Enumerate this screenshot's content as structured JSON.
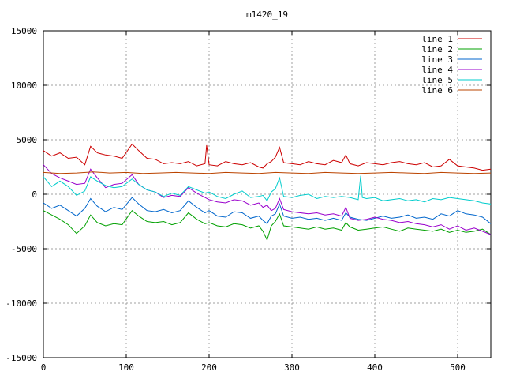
{
  "chart_data": {
    "type": "line",
    "title": "m1420_19",
    "xlabel": "",
    "ylabel": "",
    "xlim": [
      0,
      540
    ],
    "ylim": [
      -15000,
      15000
    ],
    "xticks": [
      0,
      100,
      200,
      300,
      400,
      500
    ],
    "yticks": [
      -15000,
      -10000,
      -5000,
      0,
      5000,
      10000,
      15000
    ],
    "grid": true,
    "legend_position": "top-right",
    "series": [
      {
        "name": "line 1",
        "color": "#cc0000",
        "x": [
          0,
          10,
          20,
          30,
          40,
          50,
          57,
          65,
          75,
          85,
          95,
          107,
          115,
          125,
          135,
          145,
          155,
          165,
          175,
          185,
          195,
          197,
          200,
          210,
          220,
          230,
          240,
          250,
          260,
          265,
          270,
          275,
          280,
          285,
          290,
          300,
          310,
          320,
          330,
          340,
          350,
          360,
          365,
          370,
          380,
          390,
          400,
          410,
          420,
          430,
          440,
          450,
          460,
          470,
          480,
          490,
          500,
          510,
          520,
          530,
          540
        ],
        "y": [
          4000,
          3500,
          3800,
          3300,
          3400,
          2700,
          4400,
          3800,
          3600,
          3500,
          3300,
          4600,
          4000,
          3300,
          3200,
          2800,
          2900,
          2800,
          3000,
          2600,
          2800,
          4500,
          2700,
          2600,
          3000,
          2800,
          2700,
          2900,
          2500,
          2400,
          2800,
          3000,
          3400,
          4300,
          2900,
          2800,
          2700,
          3000,
          2800,
          2700,
          3100,
          2900,
          3600,
          2800,
          2600,
          2900,
          2800,
          2700,
          2900,
          3000,
          2800,
          2700,
          2900,
          2500,
          2600,
          3200,
          2600,
          2500,
          2400,
          2200,
          2300
        ]
      },
      {
        "name": "line 2",
        "color": "#00a000",
        "x": [
          0,
          10,
          20,
          30,
          40,
          50,
          57,
          65,
          75,
          85,
          95,
          107,
          115,
          125,
          135,
          145,
          155,
          165,
          175,
          185,
          195,
          200,
          210,
          220,
          230,
          240,
          250,
          260,
          265,
          270,
          275,
          280,
          285,
          290,
          300,
          310,
          320,
          330,
          340,
          350,
          360,
          365,
          370,
          380,
          390,
          400,
          410,
          420,
          430,
          440,
          450,
          460,
          470,
          480,
          490,
          500,
          510,
          520,
          530,
          540
        ],
        "y": [
          -1500,
          -1900,
          -2300,
          -2800,
          -3600,
          -2900,
          -1900,
          -2600,
          -2900,
          -2700,
          -2800,
          -1500,
          -2000,
          -2500,
          -2600,
          -2500,
          -2800,
          -2600,
          -1700,
          -2300,
          -2700,
          -2600,
          -2900,
          -3000,
          -2700,
          -2800,
          -3100,
          -2900,
          -3400,
          -4200,
          -2900,
          -2500,
          -1800,
          -2900,
          -3000,
          -3100,
          -3200,
          -3000,
          -3200,
          -3100,
          -3300,
          -2600,
          -3000,
          -3300,
          -3200,
          -3100,
          -3000,
          -3200,
          -3400,
          -3100,
          -3200,
          -3300,
          -3400,
          -3200,
          -3500,
          -3300,
          -3500,
          -3400,
          -3200,
          -3700
        ]
      },
      {
        "name": "line 3",
        "color": "#0066cc",
        "x": [
          0,
          10,
          20,
          30,
          40,
          50,
          57,
          65,
          75,
          85,
          95,
          107,
          115,
          125,
          135,
          145,
          155,
          165,
          175,
          185,
          195,
          200,
          210,
          220,
          230,
          240,
          250,
          260,
          265,
          270,
          275,
          280,
          285,
          290,
          300,
          310,
          320,
          330,
          340,
          350,
          360,
          365,
          370,
          380,
          390,
          400,
          410,
          420,
          430,
          440,
          450,
          460,
          470,
          480,
          490,
          500,
          510,
          520,
          530,
          540
        ],
        "y": [
          -800,
          -1300,
          -1000,
          -1500,
          -2000,
          -1300,
          -400,
          -1100,
          -1600,
          -1200,
          -1400,
          -300,
          -900,
          -1500,
          -1600,
          -1400,
          -1700,
          -1500,
          -600,
          -1200,
          -1700,
          -1500,
          -2000,
          -2100,
          -1600,
          -1700,
          -2200,
          -2000,
          -2400,
          -2700,
          -2000,
          -1800,
          -900,
          -2000,
          -2200,
          -2100,
          -2300,
          -2200,
          -2400,
          -2200,
          -2400,
          -1700,
          -2100,
          -2300,
          -2400,
          -2200,
          -2000,
          -2200,
          -2100,
          -1900,
          -2200,
          -2100,
          -2300,
          -1800,
          -2000,
          -1500,
          -1800,
          -1900,
          -2100,
          -2700
        ]
      },
      {
        "name": "line 4",
        "color": "#9900cc",
        "x": [
          0,
          10,
          20,
          30,
          40,
          50,
          57,
          65,
          75,
          85,
          95,
          107,
          115,
          125,
          135,
          145,
          155,
          165,
          175,
          185,
          195,
          200,
          210,
          220,
          230,
          240,
          250,
          260,
          265,
          270,
          275,
          280,
          285,
          290,
          300,
          310,
          320,
          330,
          340,
          350,
          360,
          365,
          370,
          380,
          390,
          400,
          410,
          420,
          430,
          440,
          450,
          460,
          470,
          480,
          490,
          500,
          510,
          520,
          530,
          540
        ],
        "y": [
          2700,
          1900,
          1500,
          1200,
          900,
          1000,
          2300,
          1500,
          600,
          900,
          1000,
          1800,
          900,
          400,
          200,
          -300,
          -100,
          -200,
          600,
          100,
          -300,
          -500,
          -700,
          -800,
          -500,
          -600,
          -1000,
          -800,
          -1200,
          -1000,
          -1500,
          -1300,
          -400,
          -1400,
          -1600,
          -1700,
          -1800,
          -1700,
          -1900,
          -1800,
          -2000,
          -1200,
          -2200,
          -2400,
          -2300,
          -2100,
          -2300,
          -2400,
          -2600,
          -2500,
          -2700,
          -2800,
          -3000,
          -2800,
          -3200,
          -2900,
          -3300,
          -3100,
          -3400,
          -3700
        ]
      },
      {
        "name": "line 5",
        "color": "#00cccc",
        "x": [
          0,
          10,
          20,
          30,
          40,
          50,
          57,
          65,
          75,
          85,
          95,
          107,
          115,
          125,
          135,
          145,
          155,
          165,
          175,
          185,
          195,
          200,
          210,
          220,
          230,
          240,
          250,
          260,
          265,
          270,
          275,
          280,
          285,
          290,
          300,
          310,
          320,
          330,
          340,
          350,
          360,
          370,
          380,
          383,
          385,
          390,
          400,
          410,
          420,
          430,
          440,
          450,
          460,
          470,
          480,
          490,
          500,
          510,
          520,
          530,
          540
        ],
        "y": [
          1600,
          700,
          1200,
          700,
          -100,
          300,
          1600,
          1200,
          800,
          600,
          700,
          1400,
          900,
          400,
          200,
          -200,
          100,
          -100,
          700,
          400,
          100,
          200,
          -200,
          -400,
          0,
          300,
          -300,
          -200,
          -100,
          -600,
          200,
          500,
          1500,
          -200,
          -300,
          -100,
          0,
          -400,
          -200,
          -300,
          -200,
          -300,
          -500,
          1700,
          -300,
          -400,
          -300,
          -600,
          -500,
          -400,
          -600,
          -500,
          -700,
          -400,
          -500,
          -300,
          -400,
          -500,
          -600,
          -800,
          -900
        ]
      },
      {
        "name": "line 6",
        "color": "#bb4400",
        "x": [
          0,
          20,
          40,
          60,
          80,
          100,
          120,
          140,
          160,
          180,
          200,
          220,
          240,
          260,
          280,
          300,
          320,
          340,
          360,
          380,
          400,
          420,
          440,
          460,
          480,
          500,
          520,
          540
        ],
        "y": [
          2000,
          1900,
          1950,
          2050,
          1950,
          2000,
          1900,
          1950,
          2000,
          1950,
          1900,
          2000,
          1950,
          1900,
          2000,
          1950,
          1900,
          2000,
          1950,
          1900,
          1950,
          2000,
          1950,
          1900,
          2000,
          1950,
          1900,
          1950
        ]
      }
    ]
  }
}
